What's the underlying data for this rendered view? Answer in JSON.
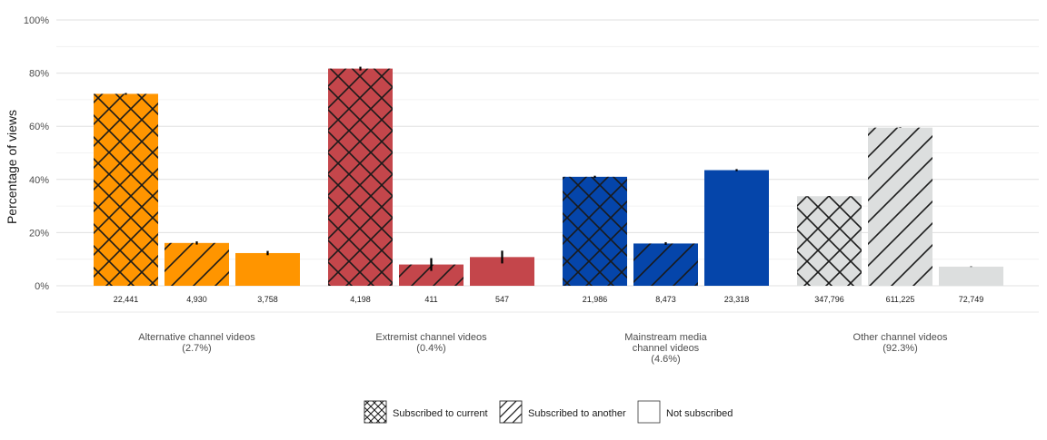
{
  "chart_data": {
    "type": "bar",
    "title": "",
    "xlabel": "",
    "ylabel": "Percentage of views",
    "ylim": [
      0,
      100
    ],
    "yticks": [
      "0%",
      "20%",
      "40%",
      "60%",
      "80%",
      "100%"
    ],
    "grid": true,
    "legend_position": "bottom",
    "groups": [
      {
        "label": "Alternative channel videos\n(2.7%)",
        "color": "#FF9500",
        "bars": [
          {
            "series": "Subscribed to current",
            "value": 72.2,
            "err": 0.3,
            "n_label": "22,441"
          },
          {
            "series": "Subscribed to another",
            "value": 16.1,
            "err": 0.6,
            "n_label": "4,930"
          },
          {
            "series": "Not subscribed",
            "value": 12.3,
            "err": 0.8,
            "n_label": "3,758"
          }
        ]
      },
      {
        "label": "Extremist channel videos\n(0.4%)",
        "color": "#C4464B",
        "bars": [
          {
            "series": "Subscribed to current",
            "value": 81.7,
            "err": 0.7,
            "n_label": "4,198"
          },
          {
            "series": "Subscribed to another",
            "value": 8.0,
            "err": 2.4,
            "n_label": "411"
          },
          {
            "series": "Not subscribed",
            "value": 10.8,
            "err": 2.4,
            "n_label": "547"
          }
        ]
      },
      {
        "label": "Mainstream media\nchannel videos\n(4.6%)",
        "color": "#0545AA",
        "bars": [
          {
            "series": "Subscribed to current",
            "value": 41.0,
            "err": 0.4,
            "n_label": "21,986"
          },
          {
            "series": "Subscribed to another",
            "value": 15.9,
            "err": 0.5,
            "n_label": "8,473"
          },
          {
            "series": "Not subscribed",
            "value": 43.5,
            "err": 0.4,
            "n_label": "23,318"
          }
        ]
      },
      {
        "label": "Other channel videos\n(92.3%)",
        "color": "#DCDEDE",
        "bars": [
          {
            "series": "Subscribed to current",
            "value": 33.7,
            "err": 0.1,
            "n_label": "347,796"
          },
          {
            "series": "Subscribed to another",
            "value": 59.5,
            "err": 0.1,
            "n_label": "611,225"
          },
          {
            "series": "Not subscribed",
            "value": 7.2,
            "err": 0.1,
            "n_label": "72,749"
          }
        ]
      }
    ],
    "series": [
      {
        "name": "Subscribed to current",
        "pattern": "crosshatch"
      },
      {
        "name": "Subscribed to another",
        "pattern": "diagonal"
      },
      {
        "name": "Not subscribed",
        "pattern": "none"
      }
    ]
  }
}
